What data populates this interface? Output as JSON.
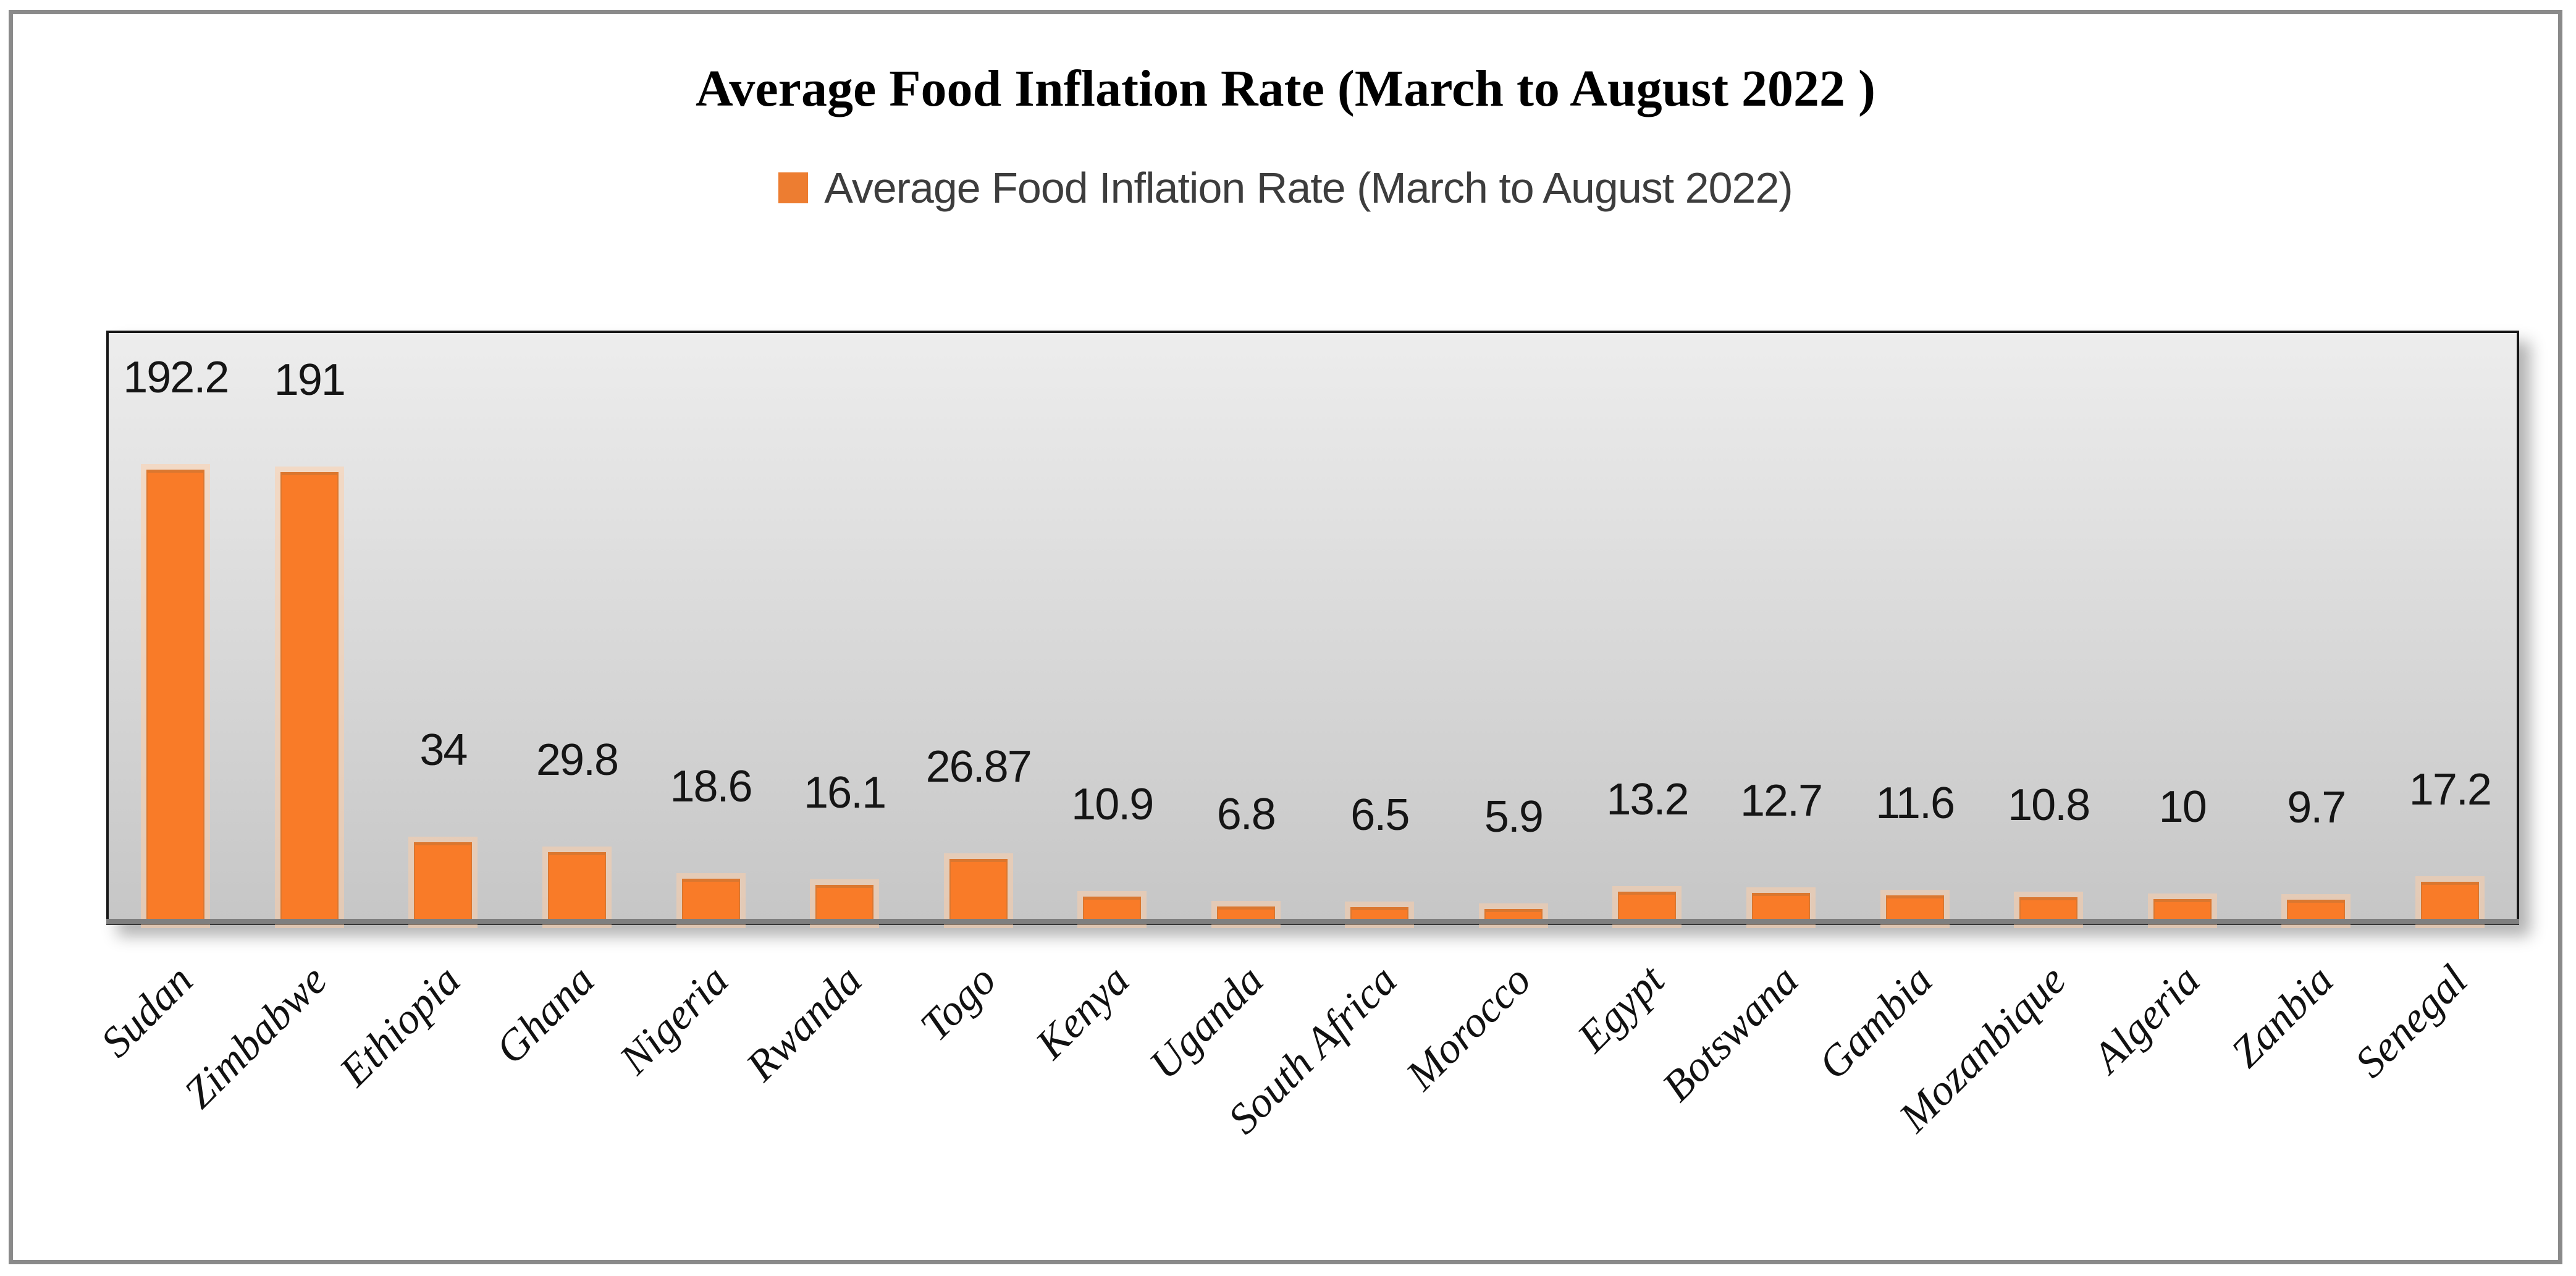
{
  "figure": {
    "border_color": "#8a8a8a",
    "title": "Average Food Inflation Rate (March to August 2022 )"
  },
  "legend": {
    "swatch_color": "#ED7D31",
    "label": "Average Food Inflation Rate (March to August 2022)"
  },
  "chart_data": {
    "type": "bar",
    "title": "Average Food Inflation Rate (March to August 2022 )",
    "legend_entries": [
      "Average Food Inflation Rate (March to August 2022)"
    ],
    "legend_position": "top",
    "categories": [
      "Sudan",
      "Zimbabwe",
      "Ethiopia",
      "Ghana",
      "Nigeria",
      "Rwanda",
      "Togo",
      "Kenya",
      "Uganda",
      "South Africa",
      "Morocco",
      "Egypt",
      "Botswana",
      "Gambia",
      "Mozanbique",
      "Algeria",
      "Zanbia",
      "Senegal"
    ],
    "values": [
      192.2,
      191,
      34,
      29.8,
      18.6,
      16.1,
      26.87,
      10.9,
      6.8,
      6.5,
      5.9,
      13.2,
      12.7,
      11.6,
      10.8,
      10,
      9.7,
      17.2
    ],
    "value_labels": [
      "192.2",
      "191",
      "34",
      "29.8",
      "18.6",
      "16.1",
      "26.87",
      "10.9",
      "6.8",
      "6.5",
      "5.9",
      "13.2",
      "12.7",
      "11.6",
      "10.8",
      "10",
      "9.7",
      "17.2"
    ],
    "xlabel": "",
    "ylabel": "",
    "ylim": [
      0,
      250
    ],
    "grid": false,
    "y_axis_ticks_visible": false,
    "bar_color": "#F97B28",
    "bar_border_color": "#DB772F",
    "bar_halo_color": "rgba(255,205,165,0.50)",
    "plot_bg_top": "#EDEDED",
    "plot_bg_bottom": "#C6C6C6",
    "plot_border_color": "#161616",
    "x_axis_line_color": "#7f7f7f",
    "value_label_color": "#151515",
    "category_label_color": "#111111",
    "category_label_angle_deg": -45
  }
}
